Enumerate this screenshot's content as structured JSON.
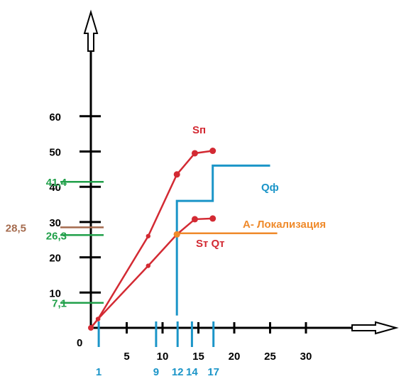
{
  "chart_data": {
    "type": "line",
    "title": "",
    "xlabel": "",
    "ylabel": "",
    "xlim": [
      0,
      30
    ],
    "ylim": [
      0,
      60
    ],
    "x_ticks": [
      5,
      10,
      15,
      20,
      25,
      30
    ],
    "x_tick_labels": [
      "5",
      "10",
      "15",
      "20",
      "25",
      "30"
    ],
    "origin_label": "0",
    "y_ticks": [
      10,
      20,
      30,
      40,
      50,
      60
    ],
    "y_tick_labels": [
      "10",
      "20",
      "30",
      "40",
      "50",
      "60"
    ],
    "x_marker_ticks": [
      1,
      9,
      12,
      14,
      17
    ],
    "x_marker_labels": [
      "1",
      "9",
      "12",
      "14",
      "17"
    ],
    "y_marker_ticks": [
      {
        "value": 7.1,
        "label": "7,1",
        "color": "#21a04a"
      },
      {
        "value": 26.3,
        "label": "26,3",
        "color": "#21a04a"
      },
      {
        "value": 28.5,
        "label": "28,5",
        "color": "#a56b4e"
      },
      {
        "value": 41.4,
        "label": "41,4",
        "color": "#21a04a"
      }
    ],
    "series": [
      {
        "name": "Sп",
        "color": "#d32a33",
        "points": [
          [
            0,
            0
          ],
          [
            1,
            2.5
          ],
          [
            8,
            26
          ],
          [
            12,
            43.5
          ],
          [
            14.5,
            49.5
          ],
          [
            17,
            50.2
          ]
        ]
      },
      {
        "name": "Sт Qт",
        "color": "#d32a33",
        "points": [
          [
            0,
            0
          ],
          [
            1,
            2.5
          ],
          [
            8,
            17.6
          ],
          [
            12,
            26.5
          ],
          [
            14.5,
            30.8
          ],
          [
            17,
            31
          ]
        ]
      },
      {
        "name": "Qф",
        "color": "#1b95c8",
        "type": "step",
        "points": [
          [
            12,
            3.5
          ],
          [
            12,
            36
          ],
          [
            17,
            36
          ],
          [
            17,
            46
          ],
          [
            25,
            46
          ]
        ]
      }
    ],
    "annotations": [
      {
        "text": "Sп",
        "color": "#d32a33"
      },
      {
        "text": "Sт Qт",
        "color": "#d32a33"
      },
      {
        "text": "Qф",
        "color": "#1b95c8"
      },
      {
        "text": "A- Локализация",
        "color": "#ef8a2b"
      }
    ],
    "horizontal_lines": [
      {
        "y": 26.8,
        "x_from": 12,
        "x_to": 26,
        "color": "#ef8a2b"
      }
    ],
    "highlight_point": {
      "x": 12,
      "y": 26.5,
      "color": "#ef8a2b"
    },
    "colors": {
      "axis": "#000000",
      "red": "#d32a33",
      "blue": "#1b95c8",
      "green": "#21a04a",
      "brown": "#a56b4e",
      "orange": "#ef8a2b"
    }
  }
}
